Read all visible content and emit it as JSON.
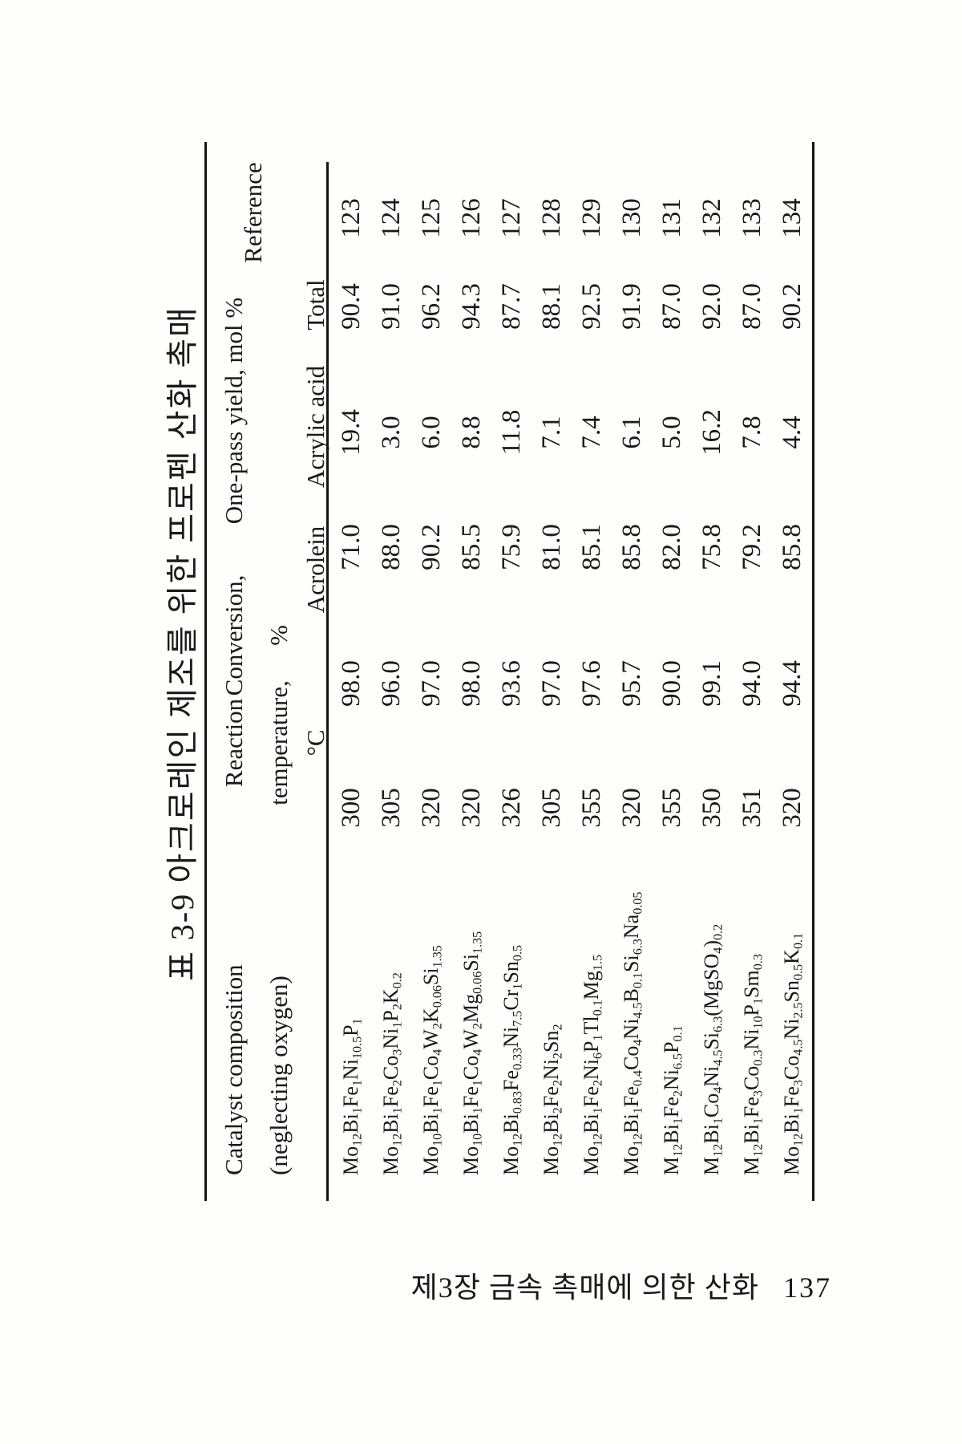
{
  "page": {
    "title": "표 3-9 아크로레인 제조를 위한 프로펜 산화 촉매",
    "footer_text": "제3장 금속 촉매에 의한 산화",
    "page_number": "137"
  },
  "table": {
    "headers": {
      "catalyst_line1": "Catalyst composition",
      "catalyst_line2": "(neglecting oxygen)",
      "temp_line1": "Reaction",
      "temp_line2": "temperature,",
      "temp_line3": "°C",
      "conversion_line1": "Conversion,",
      "conversion_line2": "%",
      "yield_group": "One-pass yield, mol %",
      "yield_sub_acrolein": "Acrolein",
      "yield_sub_acrylic": "Acrylic acid",
      "yield_sub_total": "Total",
      "reference": "Reference"
    },
    "rows": [
      {
        "catalyst": "Mo12Bi1Fe1Ni10.5P1",
        "temperature": "300",
        "conversion": "98.0",
        "acrolein": "71.0",
        "acrylic_acid": "19.4",
        "total": "90.4",
        "reference": "123"
      },
      {
        "catalyst": "Mo12Bi1Fe2Co3Ni1P2K0.2",
        "temperature": "305",
        "conversion": "96.0",
        "acrolein": "88.0",
        "acrylic_acid": "3.0",
        "total": "91.0",
        "reference": "124"
      },
      {
        "catalyst": "Mo10Bi1Fe1Co4W2K0.06Si1.35",
        "temperature": "320",
        "conversion": "97.0",
        "acrolein": "90.2",
        "acrylic_acid": "6.0",
        "total": "96.2",
        "reference": "125"
      },
      {
        "catalyst": "Mo10Bi1Fe1Co4W2Mg0.06Si1.35",
        "temperature": "320",
        "conversion": "98.0",
        "acrolein": "85.5",
        "acrylic_acid": "8.8",
        "total": "94.3",
        "reference": "126"
      },
      {
        "catalyst": "Mo12Bi0.83Fe0.33Ni7.5Cr1Sn0.5",
        "temperature": "326",
        "conversion": "93.6",
        "acrolein": "75.9",
        "acrylic_acid": "11.8",
        "total": "87.7",
        "reference": "127"
      },
      {
        "catalyst": "Mo12Bi2Fe2Ni2Sn2",
        "temperature": "305",
        "conversion": "97.0",
        "acrolein": "81.0",
        "acrylic_acid": "7.1",
        "total": "88.1",
        "reference": "128"
      },
      {
        "catalyst": "Mo12Bi1Fe2Ni6P1Tl0.1Mg1.5",
        "temperature": "355",
        "conversion": "97.6",
        "acrolein": "85.1",
        "acrylic_acid": "7.4",
        "total": "92.5",
        "reference": "129"
      },
      {
        "catalyst": "Mo12Bi1Fe0.4Co4Ni4.5B0.1Si6.3Na0.05",
        "temperature": "320",
        "conversion": "95.7",
        "acrolein": "85.8",
        "acrylic_acid": "6.1",
        "total": "91.9",
        "reference": "130"
      },
      {
        "catalyst": "M12Bi1Fe2Ni6.5P0.1",
        "temperature": "355",
        "conversion": "90.0",
        "acrolein": "82.0",
        "acrylic_acid": "5.0",
        "total": "87.0",
        "reference": "131"
      },
      {
        "catalyst": "M12Bi1Co4Ni4.5Si6.3(MgSO4)0.2",
        "temperature": "350",
        "conversion": "99.1",
        "acrolein": "75.8",
        "acrylic_acid": "16.2",
        "total": "92.0",
        "reference": "132"
      },
      {
        "catalyst": "M12Bi1Fe3Co0.3Ni10P1Sm0.3",
        "temperature": "351",
        "conversion": "94.0",
        "acrolein": "79.2",
        "acrylic_acid": "7.8",
        "total": "87.0",
        "reference": "133"
      },
      {
        "catalyst": "Mo12Bi1Fe3Co4.5Ni2.5Sn0.5K0.1",
        "temperature": "320",
        "conversion": "94.4",
        "acrolein": "85.8",
        "acrylic_acid": "4.4",
        "total": "90.2",
        "reference": "134"
      }
    ]
  }
}
